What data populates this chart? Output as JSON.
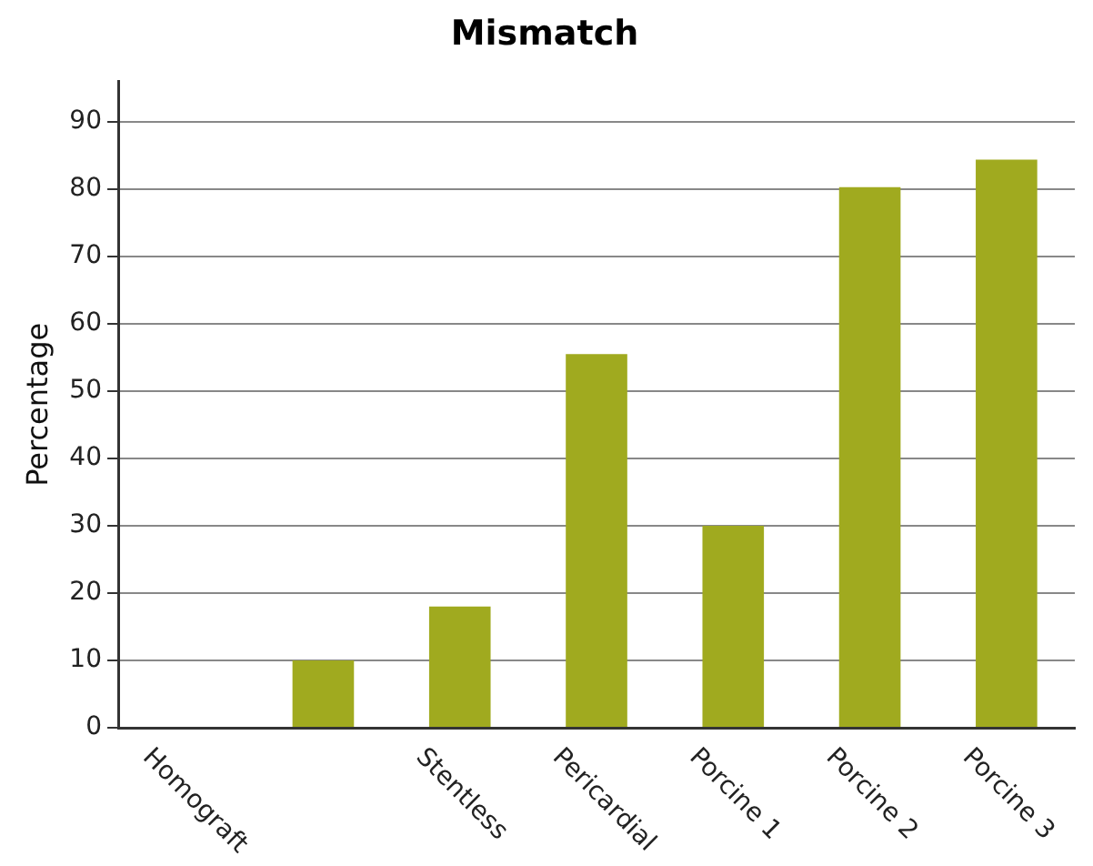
{
  "chart_data": {
    "type": "bar",
    "title": "Mismatch",
    "ylabel": "Percentage",
    "categories": [
      "Homograft",
      null,
      "Stentless",
      "Pericardial",
      "Porcine 1",
      "Porcine 2",
      "Porcine 3"
    ],
    "values": [
      0,
      10,
      18,
      55.5,
      30,
      80.3,
      84.4
    ],
    "color": "#a0aa1f",
    "ylim": [
      0,
      96
    ],
    "yticks": [
      0,
      10,
      20,
      30,
      40,
      50,
      60,
      70,
      80,
      90
    ],
    "grid": "y",
    "legend": false
  }
}
